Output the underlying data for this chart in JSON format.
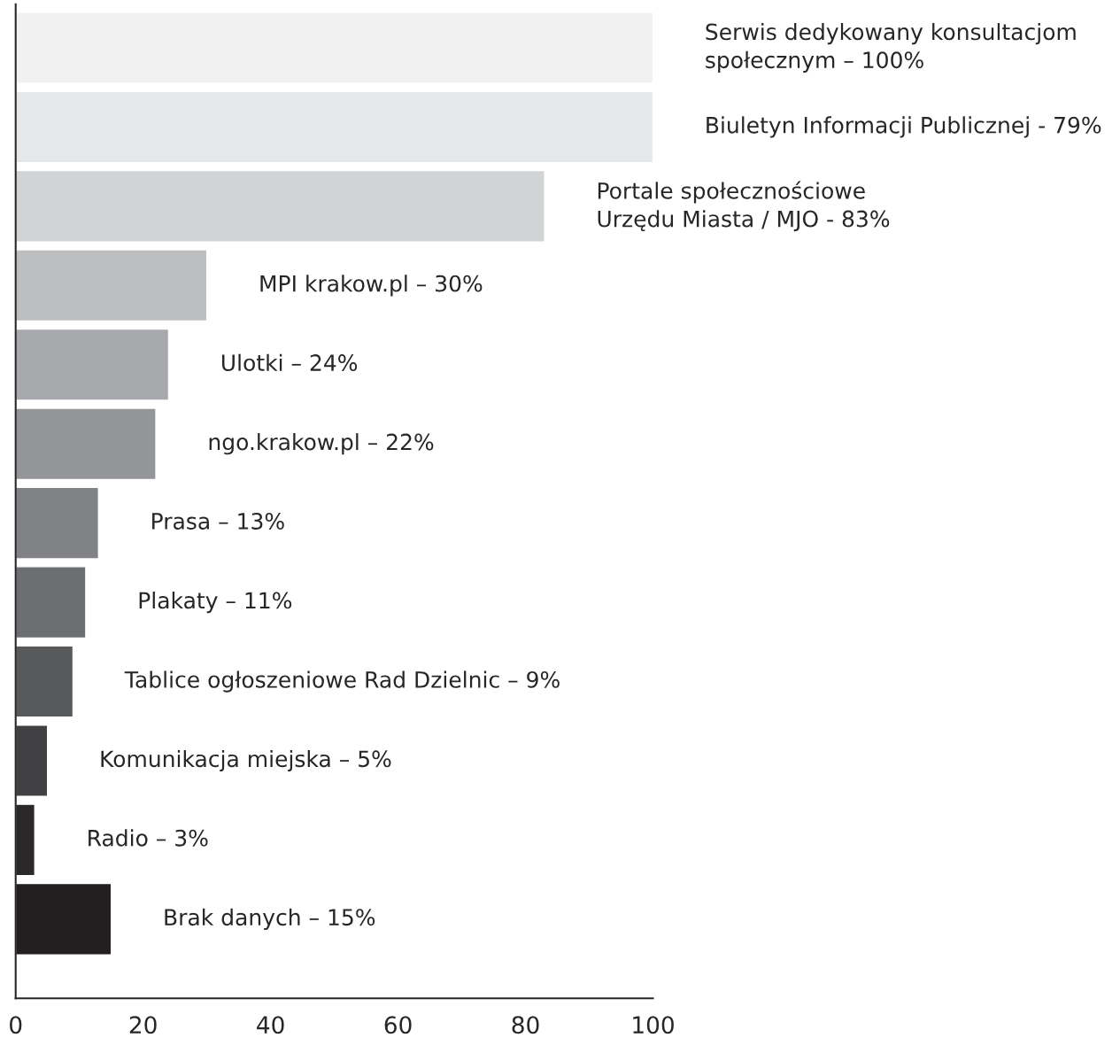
{
  "chart_data": {
    "type": "bar",
    "orientation": "horizontal",
    "categories": [
      null,
      null,
      null,
      null,
      null,
      null,
      null,
      null,
      null,
      null,
      null,
      null
    ],
    "values": [
      100,
      100,
      83,
      30,
      24,
      22,
      13,
      11,
      9,
      5,
      3,
      15
    ],
    "colors": [
      "#f1f1f2",
      "#e6e7e8",
      "#d1d3d4",
      "#bcbec0",
      "#a7a9ac",
      "#939598",
      "#808285",
      "#6d6e71",
      "#58595b",
      "#414042",
      "#2b2829",
      "#231f20"
    ],
    "annotations": [
      {
        "text": "Serwis dedykowany konsultacjom\nspołecznym – 100%",
        "x": 100
      },
      {
        "text": "Biuletyn Informacji Publicznej - 79%",
        "x": 100
      },
      {
        "text": "Portale społecznościowe\nUrzędu Miasta / MJO - 83%",
        "x": 83
      },
      {
        "text": "MPI krakow.pl – 30%",
        "x": 30
      },
      {
        "text": "Ulotki – 24%",
        "x": 24
      },
      {
        "text": "ngo.krakow.pl – 22%",
        "x": 22
      },
      {
        "text": "Prasa – 13%",
        "x": 13
      },
      {
        "text": "Plakaty – 11%",
        "x": 11
      },
      {
        "text": "Tablice ogłoszeniowe Rad Dzielnic – 9%",
        "x": 9
      },
      {
        "text": "Komunikacja miejska – 5%",
        "x": 5
      },
      {
        "text": "Radio – 3%",
        "x": 3
      },
      {
        "text": "Brak danych – 15%",
        "x": 15
      }
    ],
    "xlim": [
      0,
      100
    ],
    "xticks": [
      0,
      20,
      40,
      60,
      80,
      100
    ],
    "grid": false,
    "legend": false
  }
}
